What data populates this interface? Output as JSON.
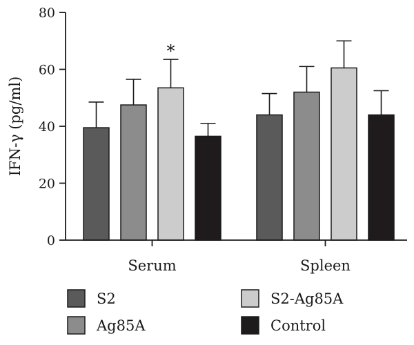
{
  "chart_data": {
    "type": "bar",
    "title": "",
    "xlabel": "",
    "ylabel": "IFN-γ (pg/ml)",
    "ylim": [
      0,
      80
    ],
    "yticks": [
      0,
      20,
      40,
      60,
      80
    ],
    "grid": false,
    "legend_position": "bottom",
    "categories": [
      "Serum",
      "Spleen"
    ],
    "series": [
      {
        "name": "S2",
        "color": "#5a5a5a",
        "values": [
          39.5,
          44
        ],
        "errors": [
          9,
          7.5
        ]
      },
      {
        "name": "Ag85A",
        "color": "#8c8c8c",
        "values": [
          47.5,
          52
        ],
        "errors": [
          9,
          9
        ]
      },
      {
        "name": "S2-Ag85A",
        "color": "#cccccc",
        "values": [
          53.5,
          60.5
        ],
        "errors": [
          10,
          9.5
        ]
      },
      {
        "name": "Control",
        "color": "#1f1a1b",
        "values": [
          36.5,
          44
        ],
        "errors": [
          4.5,
          8.5
        ]
      }
    ],
    "annotations": [
      {
        "text": "*",
        "category": "Serum",
        "series": "S2-Ag85A"
      }
    ]
  }
}
